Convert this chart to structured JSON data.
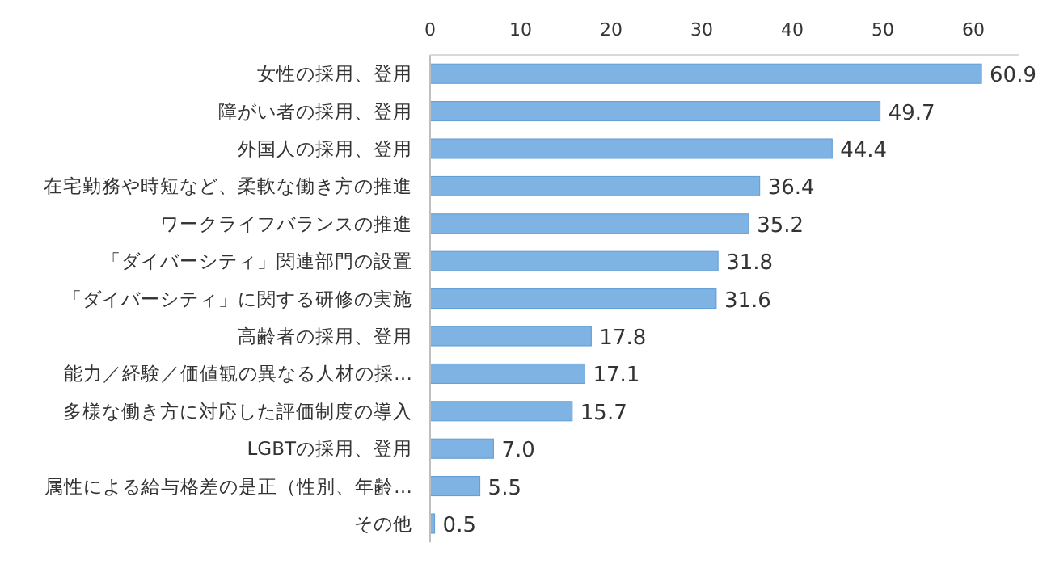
{
  "chart_data": {
    "type": "bar",
    "orientation": "horizontal",
    "categories": [
      "女性の採用、登用",
      "障がい者の採用、登用",
      "外国人の採用、登用",
      "在宅勤務や時短など、柔軟な働き方の推進",
      "ワークライフバランスの推進",
      "「ダイバーシティ」関連部門の設置",
      "「ダイバーシティ」に関する研修の実施",
      "高齢者の採用、登用",
      "能力／経験／価値観の異なる人材の採…",
      "多様な働き方に対応した評価制度の導入",
      "LGBTの採用、登用",
      "属性による給与格差の是正（性別、年齢…",
      "その他"
    ],
    "values": [
      60.9,
      49.7,
      44.4,
      36.4,
      35.2,
      31.8,
      31.6,
      17.8,
      17.1,
      15.7,
      7.0,
      5.5,
      0.5
    ],
    "value_labels": [
      "60.9",
      "49.7",
      "44.4",
      "36.4",
      "35.2",
      "31.8",
      "31.6",
      "17.8",
      "17.1",
      "15.7",
      "7.0",
      "5.5",
      "0.5"
    ],
    "color": "#7fb3e3",
    "xlim": [
      0,
      65
    ],
    "xticks": [
      0,
      10,
      20,
      30,
      40,
      50,
      60
    ]
  }
}
